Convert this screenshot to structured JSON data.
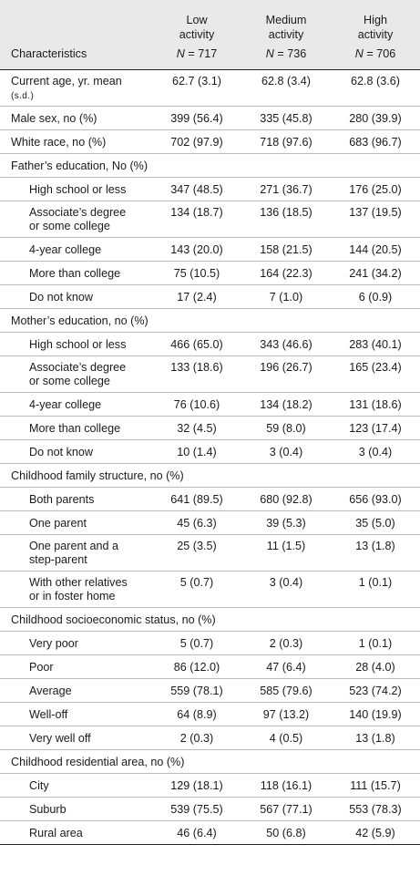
{
  "header": {
    "label_col": "Characteristics",
    "columns": [
      {
        "line1": "Low",
        "line2": "activity",
        "n_label": "N",
        "n_value": "= 717"
      },
      {
        "line1": "Medium",
        "line2": "activity",
        "n_label": "N",
        "n_value": "= 736"
      },
      {
        "line1": "High",
        "line2": "activity",
        "n_label": "N",
        "n_value": "= 706"
      }
    ]
  },
  "rows": [
    {
      "kind": "top2",
      "label1": "Current age, yr. mean",
      "label2": "(s.d.)",
      "v": [
        "62.7 (3.1)",
        "62.8 (3.4)",
        "62.8 (3.6)"
      ]
    },
    {
      "kind": "top",
      "label": "Male sex, no (%)",
      "v": [
        "399 (56.4)",
        "335 (45.8)",
        "280 (39.9)"
      ]
    },
    {
      "kind": "top",
      "label": "White race, no (%)",
      "v": [
        "702 (97.9)",
        "718 (97.6)",
        "683 (96.7)"
      ]
    },
    {
      "kind": "sec",
      "label": "Father’s education, No (%)"
    },
    {
      "kind": "sub",
      "label": "High school or less",
      "v": [
        "347 (48.5)",
        "271 (36.7)",
        "176 (25.0)"
      ]
    },
    {
      "kind": "sub2",
      "label1": "Associate’s degree",
      "label2": "or some college",
      "v": [
        "134 (18.7)",
        "136 (18.5)",
        "137 (19.5)"
      ]
    },
    {
      "kind": "sub",
      "label": "4-year college",
      "v": [
        "143 (20.0)",
        "158 (21.5)",
        "144 (20.5)"
      ]
    },
    {
      "kind": "sub",
      "label": "More than college",
      "v": [
        "75 (10.5)",
        "164 (22.3)",
        "241 (34.2)"
      ]
    },
    {
      "kind": "sub",
      "label": "Do not know",
      "v": [
        "17 (2.4)",
        "7 (1.0)",
        "6 (0.9)"
      ]
    },
    {
      "kind": "sec",
      "label": "Mother’s education, no (%)"
    },
    {
      "kind": "sub",
      "label": "High school or less",
      "v": [
        "466 (65.0)",
        "343 (46.6)",
        "283 (40.1)"
      ]
    },
    {
      "kind": "sub2",
      "label1": "Associate’s degree",
      "label2": "or some college",
      "v": [
        "133 (18.6)",
        "196 (26.7)",
        "165 (23.4)"
      ]
    },
    {
      "kind": "sub",
      "label": "4-year college",
      "v": [
        "76 (10.6)",
        "134 (18.2)",
        "131 (18.6)"
      ]
    },
    {
      "kind": "sub",
      "label": "More than college",
      "v": [
        "32 (4.5)",
        "59 (8.0)",
        "123 (17.4)"
      ]
    },
    {
      "kind": "sub",
      "label": "Do not know",
      "v": [
        "10 (1.4)",
        "3 (0.4)",
        "3 (0.4)"
      ]
    },
    {
      "kind": "sec",
      "label": "Childhood family structure, no (%)"
    },
    {
      "kind": "sub",
      "label": "Both parents",
      "v": [
        "641 (89.5)",
        "680 (92.8)",
        "656 (93.0)"
      ]
    },
    {
      "kind": "sub",
      "label": "One parent",
      "v": [
        "45 (6.3)",
        "39 (5.3)",
        "35 (5.0)"
      ]
    },
    {
      "kind": "sub2",
      "label1": "One parent and a",
      "label2": "step-parent",
      "v": [
        "25 (3.5)",
        "11 (1.5)",
        "13 (1.8)"
      ]
    },
    {
      "kind": "sub2",
      "label1": "With other relatives",
      "label2": "or in foster home",
      "v": [
        "5 (0.7)",
        "3 (0.4)",
        "1 (0.1)"
      ]
    },
    {
      "kind": "sec",
      "label": "Childhood socioeconomic status, no (%)"
    },
    {
      "kind": "sub",
      "label": "Very poor",
      "v": [
        "5 (0.7)",
        "2 (0.3)",
        "1 (0.1)"
      ]
    },
    {
      "kind": "sub",
      "label": "Poor",
      "v": [
        "86 (12.0)",
        "47 (6.4)",
        "28 (4.0)"
      ]
    },
    {
      "kind": "sub",
      "label": "Average",
      "v": [
        "559 (78.1)",
        "585 (79.6)",
        "523 (74.2)"
      ]
    },
    {
      "kind": "sub",
      "label": "Well-off",
      "v": [
        "64 (8.9)",
        "97 (13.2)",
        "140 (19.9)"
      ]
    },
    {
      "kind": "sub",
      "label": "Very well off",
      "v": [
        "2 (0.3)",
        "4 (0.5)",
        "13 (1.8)"
      ]
    },
    {
      "kind": "sec",
      "label": "Childhood residential area, no (%)"
    },
    {
      "kind": "sub",
      "label": "City",
      "v": [
        "129 (18.1)",
        "118 (16.1)",
        "111 (15.7)"
      ]
    },
    {
      "kind": "sub",
      "label": "Suburb",
      "v": [
        "539 (75.5)",
        "567 (77.1)",
        "553 (78.3)"
      ]
    },
    {
      "kind": "sub",
      "label": "Rural area",
      "v": [
        "46 (6.4)",
        "50 (6.8)",
        "42 (5.9)"
      ]
    }
  ]
}
